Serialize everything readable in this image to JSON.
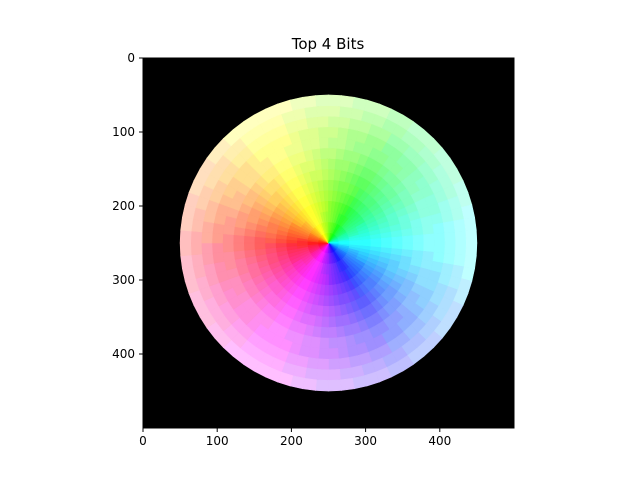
{
  "chart_data": {
    "type": "heatmap",
    "title": "Top 4 Bits",
    "image_size": [
      500,
      500
    ],
    "xlim": [
      0,
      500
    ],
    "ylim": [
      500,
      0
    ],
    "x_ticks": [
      0,
      100,
      200,
      300,
      400
    ],
    "y_ticks": [
      0,
      100,
      200,
      300,
      400
    ],
    "background_color": "#000000",
    "disk": {
      "center": [
        250,
        250
      ],
      "radius": 200
    },
    "colormap": "hsv color wheel (hue by angle, saturation by radius), quantized to top 4 bits per channel",
    "hue_anchors": [
      {
        "name": "red",
        "angle_deg": 180,
        "color": "#ff0000"
      },
      {
        "name": "yellow",
        "angle_deg": 240,
        "color": "#ffff00"
      },
      {
        "name": "green",
        "angle_deg": 300,
        "color": "#00ff00"
      },
      {
        "name": "cyan",
        "angle_deg": 0,
        "color": "#00ffff"
      },
      {
        "name": "blue",
        "angle_deg": 60,
        "color": "#0000ff"
      },
      {
        "name": "magenta",
        "angle_deg": 120,
        "color": "#ff00ff"
      }
    ],
    "quantization_bits": 4,
    "grid": false,
    "legend": false
  }
}
